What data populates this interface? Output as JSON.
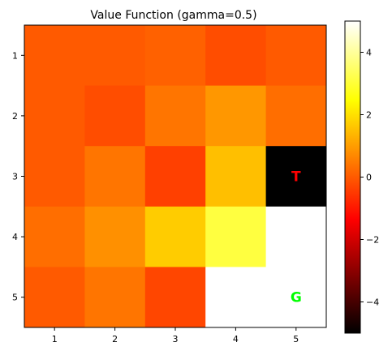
{
  "chart_data": {
    "type": "heatmap",
    "title": "Value Function (gamma=0.5)",
    "xlabel": "",
    "ylabel": "",
    "x_ticks": [
      "1",
      "2",
      "3",
      "4",
      "5"
    ],
    "y_ticks": [
      "1",
      "2",
      "3",
      "4",
      "5"
    ],
    "values": [
      [
        0.0,
        0.0,
        0.1,
        -0.2,
        0.0
      ],
      [
        0.0,
        -0.2,
        0.4,
        0.9,
        0.3
      ],
      [
        0.0,
        0.4,
        -0.4,
        1.5,
        -5.0
      ],
      [
        0.3,
        0.8,
        1.7,
        3.1,
        5.0
      ],
      [
        0.0,
        0.4,
        -0.3,
        5.0,
        5.0
      ]
    ],
    "annotations": [
      {
        "row": 3,
        "col": 5,
        "text": "T",
        "color": "#ff0000"
      },
      {
        "row": 5,
        "col": 5,
        "text": "G",
        "color": "#00ff00"
      }
    ],
    "colormap": "hot",
    "vmin": -5,
    "vmax": 5,
    "colorbar_ticks": [
      "−4",
      "−2",
      "0",
      "2",
      "4"
    ],
    "colorbar_tick_values": [
      -4,
      -2,
      0,
      2,
      4
    ],
    "grid": false
  }
}
